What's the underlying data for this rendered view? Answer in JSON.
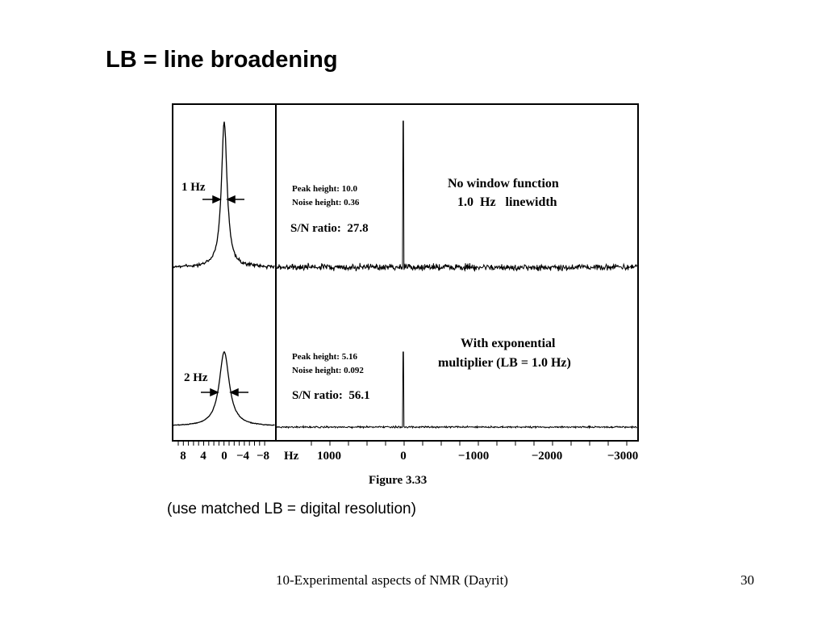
{
  "slide": {
    "title": "LB = line broadening",
    "caption": "(use matched LB = digital resolution)",
    "footer": "10-Experimental aspects of NMR (Dayrit)",
    "page_number": "30"
  },
  "figure": {
    "label": "Figure 3.33",
    "top_panel": {
      "expanded_width_label": "1 Hz",
      "peak_height": "Peak height: 10.0",
      "noise_height": "Noise height: 0.36",
      "sn_ratio": "S/N ratio:  27.8",
      "description_line1": "No window function",
      "description_line2": "1.0  Hz   linewidth"
    },
    "bottom_panel": {
      "expanded_width_label": "2 Hz",
      "peak_height": "Peak height: 5.16",
      "noise_height": "Noise height: 0.092",
      "sn_ratio": "S/N ratio:  56.1",
      "description_line1": "With exponential",
      "description_line2": "multiplier (LB = 1.0 Hz)"
    },
    "axis_left_ticks": [
      "8",
      "4",
      "0",
      "−4",
      "−8"
    ],
    "axis_unit": "Hz",
    "axis_right_ticks": [
      "1000",
      "0",
      "−1000",
      "−2000",
      "−3000"
    ]
  }
}
